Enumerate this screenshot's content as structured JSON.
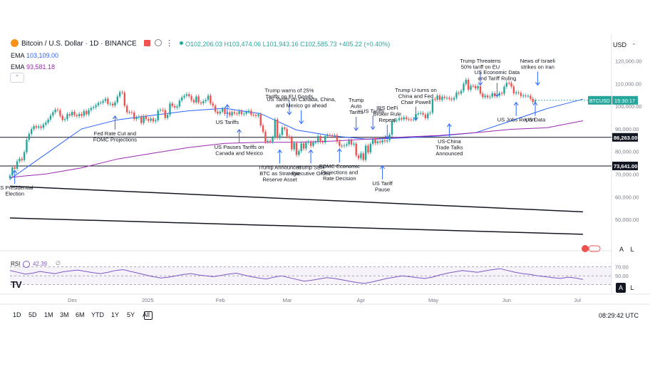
{
  "header": {
    "symbol_title": "Bitcoin / U.S. Dollar · 1D · BINANCE",
    "ohlc": "O102,206.03 H103,474.06 L101,943.16 C102,585.73 +405.22 (+0.40%)",
    "ema1": {
      "label": "EMA",
      "value": "103,109.00"
    },
    "ema2": {
      "label": "EMA",
      "value": "93,581.18"
    },
    "currency": "USD"
  },
  "rsi": {
    "label": "RSI",
    "value": "42.39",
    "extra": "∅",
    "levels": [
      "70.00",
      "50.00"
    ]
  },
  "toolbar": {
    "timeframes": [
      "1D",
      "5D",
      "1M",
      "3M",
      "6M",
      "YTD",
      "1Y",
      "5Y",
      "All"
    ],
    "clock": "08:29:42 UTC",
    "scale_a": "A",
    "scale_l": "L",
    "logo": "TV"
  },
  "price_labels": {
    "symbol_tag": "BTCUSD",
    "countdown": "15:30:17",
    "level_upper": "86,263.00",
    "level_lower": "73,641.00"
  },
  "colors": {
    "up": "#26a69a",
    "down": "#ef5350",
    "ema_fast": "#2962ff",
    "ema_slow": "#9c27b0",
    "annotation": "#2962ff",
    "rsi": "#7e57c2"
  },
  "chart_data": {
    "type": "candlestick",
    "y_range": [
      40000,
      128000
    ],
    "y_ticks": [
      "120,000.00",
      "110,000.00",
      "100,000.00",
      "90,000.00",
      "80,000.00",
      "70,000.00",
      "60,000.00",
      "50,000.00"
    ],
    "y_tick_values": [
      120000,
      110000,
      100000,
      90000,
      80000,
      70000,
      60000,
      50000
    ],
    "x_ticks": [
      "Dec",
      "2025",
      "Feb",
      "Mar",
      "Apr",
      "May",
      "Jun",
      "Jul"
    ],
    "x_tick_days": [
      26,
      57,
      88,
      116,
      147,
      177,
      208,
      238
    ],
    "close": [
      69400,
      73000,
      72400,
      75700,
      76800,
      76200,
      79700,
      85200,
      87800,
      89900,
      91200,
      90600,
      91100,
      90400,
      91900,
      92800,
      94100,
      95900,
      97300,
      98500,
      98200,
      95800,
      93900,
      94300,
      96500,
      95900,
      97500,
      96100,
      95600,
      96600,
      95800,
      97900,
      96400,
      98300,
      99200,
      99600,
      100400,
      101500,
      101600,
      102300,
      103300,
      101000,
      101100,
      100300,
      101700,
      104300,
      106200,
      106000,
      100200,
      97300,
      97400,
      97200,
      94300,
      95000,
      95300,
      92600,
      95600,
      94300,
      93600,
      94600,
      93300,
      93800,
      98100,
      98400,
      98200,
      94800,
      96200,
      101200,
      100100,
      99400,
      99900,
      102500,
      103900,
      104600,
      105300,
      104400,
      102700,
      101700,
      104300,
      101700,
      101300,
      102200,
      102800,
      104700,
      101200,
      100200,
      97600,
      96800,
      97600,
      98900,
      96600,
      97300,
      96000,
      97400,
      96800,
      96600,
      97800,
      96500,
      96700,
      97500,
      98000,
      96300,
      96100,
      95700,
      96400,
      91500,
      88700,
      84300,
      84700,
      84400,
      86100,
      94200,
      86000,
      87300,
      90600,
      89900,
      86700,
      86200,
      81000,
      83700,
      78500,
      80200,
      83600,
      81300,
      83900,
      84300,
      82500,
      84000,
      84100,
      86800,
      84200,
      84000,
      86800,
      87200,
      87000,
      86900,
      87200,
      84400,
      82600,
      82400,
      82700,
      83200,
      84900,
      83100,
      83500,
      78300,
      77000,
      79200,
      76300,
      82600,
      79600,
      83400,
      85300,
      83700,
      84500,
      84000,
      84900,
      84500,
      85000,
      87400,
      93400,
      93700,
      93900,
      94700,
      94200,
      95100,
      94300,
      94200,
      94100,
      94200,
      96500,
      96900,
      97000,
      96300,
      94700,
      96800,
      97100,
      103200,
      102900,
      104700,
      102800,
      104200,
      103600,
      103700,
      103300,
      102900,
      103700,
      106000,
      105600,
      106800,
      109800,
      111700,
      107300,
      109000,
      108900,
      107800,
      108800,
      105600,
      104000,
      104700,
      103900,
      104200,
      105700,
      104400,
      104700,
      105800,
      105500,
      108600,
      110300,
      110200,
      108700,
      105700,
      106100,
      105900,
      104500,
      104700,
      104600,
      104600,
      103300,
      101800,
      102600
    ],
    "series": [
      {
        "name": "EMA",
        "values": [
          67800,
          78900,
          90000,
          94000,
          96000,
          98000,
          99100,
          96700,
          89500,
          86900,
          85400,
          86000,
          86900,
          88300,
          93600,
          99000,
          103100
        ]
      },
      {
        "name": "EMA",
        "values": [
          68600,
          70100,
          72800,
          76700,
          79300,
          81800,
          83600,
          84100,
          84100,
          84600,
          85500,
          86400,
          87100,
          88300,
          89800,
          90500,
          93600
        ]
      }
    ],
    "ema_days": [
      0,
      15,
      30,
      45,
      60,
      75,
      90,
      105,
      120,
      135,
      150,
      165,
      180,
      195,
      210,
      225,
      240
    ],
    "horizontal_levels": [
      86263,
      73641
    ],
    "trendlines": [
      {
        "from": [
          0,
          64700
        ],
        "to": [
          240,
          53400
        ]
      },
      {
        "from": [
          0,
          50700
        ],
        "to": [
          240,
          43500
        ]
      }
    ],
    "annotations": [
      {
        "text": [
          "US Presidential",
          "Election"
        ],
        "day": 2,
        "price": 72000,
        "dir": "up"
      },
      {
        "text": [
          "Fed Rate Cut and",
          "FOMC Projections"
        ],
        "day": 44,
        "price": 96000,
        "dir": "up"
      },
      {
        "text": [
          "US Tariffs"
        ],
        "day": 91,
        "price": 101000,
        "dir": "up"
      },
      {
        "text": [
          "US Pauses Tariffs on",
          "Canada and Mexico"
        ],
        "day": 96,
        "price": 90000,
        "dir": "up"
      },
      {
        "text": [
          "Trump Announces",
          "BTC as Strategic",
          "Reserve Asset"
        ],
        "day": 113,
        "price": 81000,
        "dir": "up"
      },
      {
        "text": [
          "Trump warns of 25%",
          "Tariffs on EU Goods"
        ],
        "day": 117,
        "price": 96000,
        "dir": "down"
      },
      {
        "text": [
          "US Tariffs on Canada, China,",
          "and Mexico go ahead"
        ],
        "day": 122,
        "price": 92000,
        "dir": "down"
      },
      {
        "text": [
          "Trump SBR",
          "Executive Order"
        ],
        "day": 126,
        "price": 81000,
        "dir": "up"
      },
      {
        "text": [
          "FOMC Economic",
          "Projections and",
          "Rate Decision"
        ],
        "day": 138,
        "price": 81500,
        "dir": "up"
      },
      {
        "text": [
          "Trump",
          "Auto",
          "Tariffs"
        ],
        "day": 145,
        "price": 89000,
        "dir": "down"
      },
      {
        "text": [
          "US Tariffs"
        ],
        "day": 152,
        "price": 89500,
        "dir": "down"
      },
      {
        "text": [
          "US Tariff",
          "Pause"
        ],
        "day": 156,
        "price": 74000,
        "dir": "up"
      },
      {
        "text": [
          "IRS DeFi",
          "Broker Rule",
          "Repeal"
        ],
        "day": 158,
        "price": 85500,
        "dir": "down"
      },
      {
        "text": [
          "Trump U-turns on",
          "China and Fed",
          "Chair Powell"
        ],
        "day": 170,
        "price": 93500,
        "dir": "down"
      },
      {
        "text": [
          "US-China",
          "Trade Talks",
          "Announced"
        ],
        "day": 184,
        "price": 92500,
        "dir": "up"
      },
      {
        "text": [
          "Trump Threatens",
          "50% tariff on EU"
        ],
        "day": 197,
        "price": 109000,
        "dir": "down"
      },
      {
        "text": [
          "US Economic Data",
          "and Tariff Ruling"
        ],
        "day": 204,
        "price": 104000,
        "dir": "down"
      },
      {
        "text": [
          "US Jobs Report"
        ],
        "day": 212,
        "price": 102000,
        "dir": "up"
      },
      {
        "text": [
          "News of Israeli",
          "strikes on Iran"
        ],
        "day": 221,
        "price": 109000,
        "dir": "down"
      },
      {
        "text": [
          "US Data"
        ],
        "day": 220,
        "price": 102000,
        "dir": "up"
      }
    ],
    "rsi_values": [
      62,
      58,
      54,
      56,
      60,
      57,
      55,
      59,
      61,
      63,
      60,
      57,
      55,
      58,
      62,
      64,
      60,
      56,
      52,
      48,
      45,
      47,
      50,
      53,
      55,
      52,
      50,
      48,
      51,
      54,
      56,
      52,
      48,
      45,
      43,
      47,
      50,
      46,
      42,
      38,
      40,
      43,
      46,
      44,
      41,
      38,
      35,
      33,
      36,
      40,
      44,
      47,
      50,
      48,
      46,
      44,
      47,
      52,
      56,
      59,
      62,
      60,
      58,
      61,
      64,
      66,
      62,
      58,
      55,
      53,
      50,
      48,
      46,
      44,
      47,
      45,
      42
    ]
  }
}
